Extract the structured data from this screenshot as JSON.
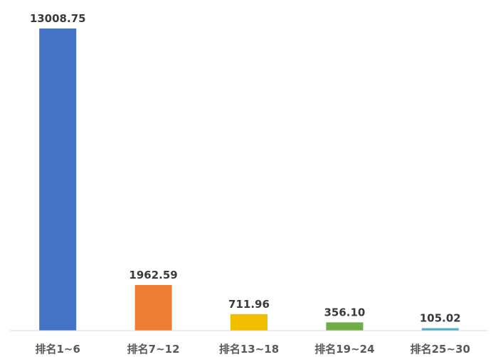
{
  "chart_data": {
    "type": "bar",
    "categories": [
      "排名1~6",
      "排名7~12",
      "排名13~18",
      "排名19~24",
      "排名25~30"
    ],
    "values": [
      13008.75,
      1962.59,
      711.96,
      356.1,
      105.02
    ],
    "value_labels": [
      "13008.75",
      "1962.59",
      "711.96",
      "356.10",
      "105.02"
    ],
    "colors": [
      "#4472C4",
      "#ED7D31",
      "#F2BE00",
      "#70AD47",
      "#4BACC6"
    ],
    "title": "",
    "xlabel": "",
    "ylabel": "",
    "ylim": [
      0,
      13008.75
    ],
    "grid": false,
    "legend": "none"
  }
}
